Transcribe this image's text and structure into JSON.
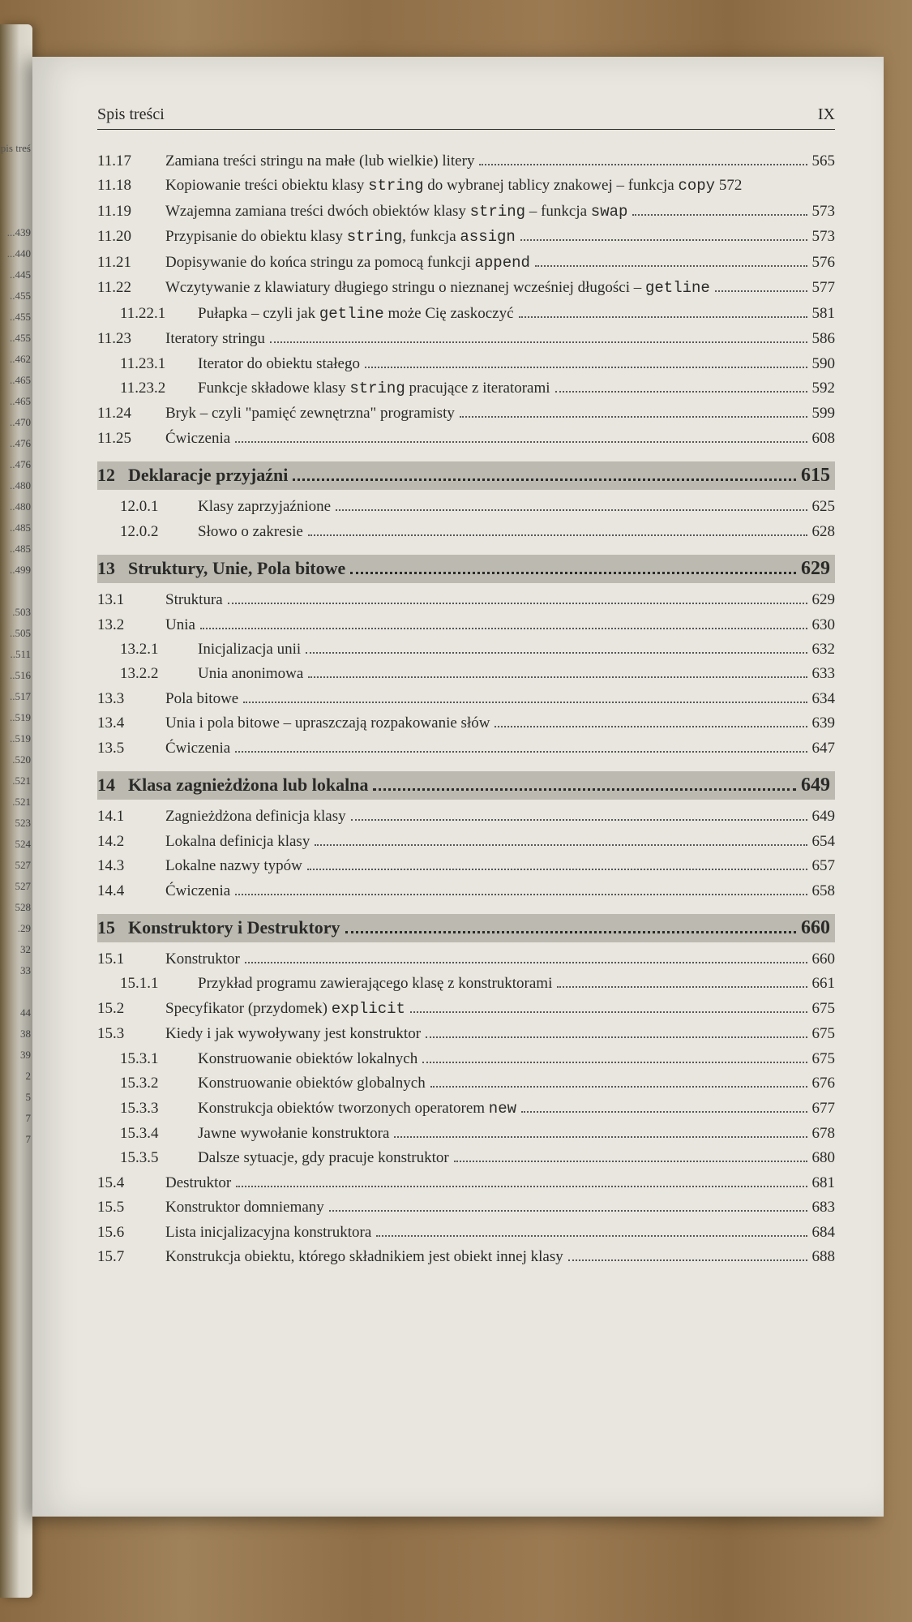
{
  "header": {
    "title": "Spis treści",
    "page_roman": "IX"
  },
  "left_peek": "pis treś\n\n\n\n...439\n...440\n..445\n..455\n..455\n..455\n..462\n..465\n..465\n..470\n..476\n..476\n..480\n..480\n..485\n..485\n..499\n\n.503\n..505\n..511\n..516\n..517\n..519\n..519\n.520\n.521\n.521\n523\n524\n527\n527\n528\n.29\n32\n33\n\n44\n38\n39\n2\n5\n7\n7",
  "entries": [
    {
      "num": "11.17",
      "label": "Zamiana treści stringu na małe (lub wielkie) litery",
      "pg": "565"
    },
    {
      "num": "11.18",
      "label": "Kopiowanie treści obiektu klasy <code>string</code> do wybranej tablicy znakowej – funkcja <code>copy</code> 572",
      "pg": "",
      "nodots": true
    },
    {
      "num": "11.19",
      "label": "Wzajemna zamiana treści dwóch obiektów klasy <code>string</code> – funkcja <code>swap</code>",
      "pg": "573"
    },
    {
      "num": "11.20",
      "label": "Przypisanie do obiektu klasy <code>string</code>, funkcja <code>assign</code>",
      "pg": "573"
    },
    {
      "num": "11.21",
      "label": "Dopisywanie do końca stringu za pomocą funkcji <code>append</code>",
      "pg": "576"
    },
    {
      "num": "11.22",
      "label": "Wczytywanie z klawiatury długiego stringu o nieznanej wcześniej długości – <code>getline</code>",
      "pg": "577"
    },
    {
      "num": "11.22.1",
      "label": "Pułapka – czyli jak <code>getline</code> może Cię zaskoczyć",
      "pg": "581",
      "sub": true
    },
    {
      "num": "11.23",
      "label": "Iteratory stringu",
      "pg": "586"
    },
    {
      "num": "11.23.1",
      "label": "Iterator do obiektu stałego",
      "pg": "590",
      "sub": true
    },
    {
      "num": "11.23.2",
      "label": "Funkcje składowe klasy <code>string</code> pracujące z iteratorami",
      "pg": "592",
      "sub": true
    },
    {
      "num": "11.24",
      "label": "Bryk – czyli \"pamięć zewnętrzna\" programisty",
      "pg": "599"
    },
    {
      "num": "11.25",
      "label": "Ćwiczenia",
      "pg": "608"
    },
    {
      "chapter": true,
      "num": "12",
      "label": "Deklaracje przyjaźni",
      "pg": "615"
    },
    {
      "num": "12.0.1",
      "label": "Klasy zaprzyjaźnione",
      "pg": "625",
      "sub": true
    },
    {
      "num": "12.0.2",
      "label": "Słowo o zakresie",
      "pg": "628",
      "sub": true
    },
    {
      "chapter": true,
      "num": "13",
      "label": "Struktury, Unie, Pola bitowe",
      "pg": "629"
    },
    {
      "num": "13.1",
      "label": "Struktura",
      "pg": "629"
    },
    {
      "num": "13.2",
      "label": "Unia",
      "pg": "630"
    },
    {
      "num": "13.2.1",
      "label": "Inicjalizacja unii",
      "pg": "632",
      "sub": true
    },
    {
      "num": "13.2.2",
      "label": "Unia anonimowa",
      "pg": "633",
      "sub": true
    },
    {
      "num": "13.3",
      "label": "Pola bitowe",
      "pg": "634"
    },
    {
      "num": "13.4",
      "label": "Unia i pola bitowe – upraszczają rozpakowanie słów",
      "pg": "639"
    },
    {
      "num": "13.5",
      "label": "Ćwiczenia",
      "pg": "647"
    },
    {
      "chapter": true,
      "num": "14",
      "label": "Klasa zagnieżdżona lub lokalna",
      "pg": "649"
    },
    {
      "num": "14.1",
      "label": "Zagnieżdżona definicja klasy",
      "pg": "649"
    },
    {
      "num": "14.2",
      "label": "Lokalna definicja klasy",
      "pg": "654"
    },
    {
      "num": "14.3",
      "label": "Lokalne nazwy typów",
      "pg": "657"
    },
    {
      "num": "14.4",
      "label": "Ćwiczenia",
      "pg": "658"
    },
    {
      "chapter": true,
      "num": "15",
      "label": "Konstruktory i Destruktory",
      "pg": "660"
    },
    {
      "num": "15.1",
      "label": "Konstruktor",
      "pg": "660"
    },
    {
      "num": "15.1.1",
      "label": "Przykład programu zawierającego klasę z konstruktorami",
      "pg": "661",
      "sub": true
    },
    {
      "num": "15.2",
      "label": "Specyfikator (przydomek) <code>explicit</code>",
      "pg": "675"
    },
    {
      "num": "15.3",
      "label": "Kiedy i jak wywoływany jest konstruktor",
      "pg": "675"
    },
    {
      "num": "15.3.1",
      "label": "Konstruowanie obiektów lokalnych",
      "pg": "675",
      "sub": true
    },
    {
      "num": "15.3.2",
      "label": "Konstruowanie obiektów globalnych",
      "pg": "676",
      "sub": true
    },
    {
      "num": "15.3.3",
      "label": "Konstrukcja obiektów tworzonych operatorem <code>new</code>",
      "pg": "677",
      "sub": true
    },
    {
      "num": "15.3.4",
      "label": "Jawne wywołanie konstruktora",
      "pg": "678",
      "sub": true
    },
    {
      "num": "15.3.5",
      "label": "Dalsze sytuacje, gdy pracuje konstruktor",
      "pg": "680",
      "sub": true
    },
    {
      "num": "15.4",
      "label": "Destruktor",
      "pg": "681"
    },
    {
      "num": "15.5",
      "label": "Konstruktor domniemany",
      "pg": "683"
    },
    {
      "num": "15.6",
      "label": "Lista inicjalizacyjna konstruktora",
      "pg": "684"
    },
    {
      "num": "15.7",
      "label": "Konstrukcja obiektu, którego składnikiem jest obiekt innej klasy",
      "pg": "688"
    }
  ]
}
